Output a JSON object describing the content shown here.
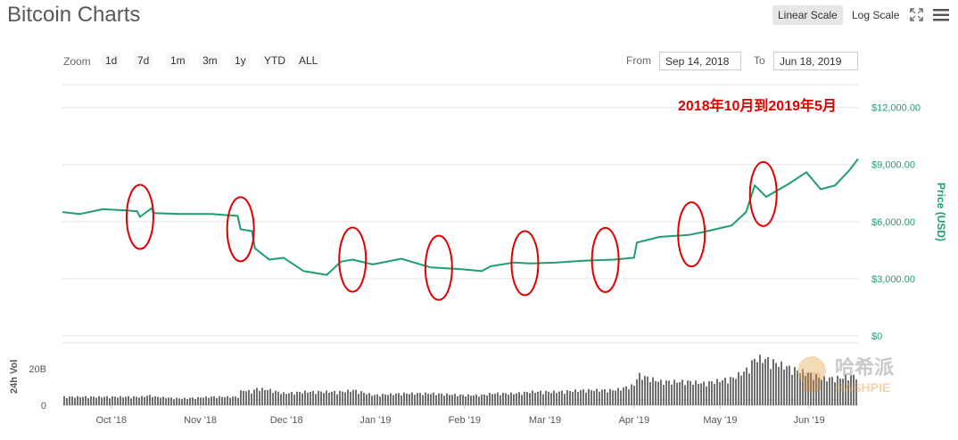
{
  "header": {
    "title": "Bitcoin Charts",
    "linear_scale_label": "Linear Scale",
    "log_scale_label": "Log Scale",
    "fullscreen_icon": "expand-icon",
    "menu_icon": "hamburger-menu-icon"
  },
  "zoom": {
    "label": "Zoom",
    "buttons": [
      "1d",
      "7d",
      "1m",
      "3m",
      "1y",
      "YTD",
      "ALL"
    ]
  },
  "range": {
    "from_label": "From",
    "from_value": "Sep 14, 2018",
    "to_label": "To",
    "to_value": "Jun 18, 2019"
  },
  "annotation": {
    "text": "2018年10月到2019年5月",
    "color": "#e00000"
  },
  "watermark": {
    "text": "哈希派",
    "subtext": "HASHPIE"
  },
  "colors": {
    "price_line": "#1f9e6b",
    "volume_bars": "#6f6f6f",
    "circle": "#e00000",
    "axis_label": "#1f9e6b"
  },
  "chart_data": {
    "type": "line",
    "x": [
      "2018-09-14",
      "2018-09-20",
      "2018-09-28",
      "2018-10-05",
      "2018-10-10",
      "2018-10-11",
      "2018-10-15",
      "2018-10-16",
      "2018-10-25",
      "2018-11-05",
      "2018-11-14",
      "2018-11-15",
      "2018-11-19",
      "2018-11-20",
      "2018-11-25",
      "2018-11-30",
      "2018-12-07",
      "2018-12-15",
      "2018-12-20",
      "2018-12-24",
      "2018-12-31",
      "2019-01-10",
      "2019-01-20",
      "2019-01-31",
      "2019-02-07",
      "2019-02-10",
      "2019-02-18",
      "2019-02-24",
      "2019-03-05",
      "2019-03-15",
      "2019-03-25",
      "2019-04-01",
      "2019-04-02",
      "2019-04-10",
      "2019-04-20",
      "2019-04-25",
      "2019-05-05",
      "2019-05-10",
      "2019-05-13",
      "2019-05-17",
      "2019-05-25",
      "2019-05-31",
      "2019-06-05",
      "2019-06-10",
      "2019-06-15",
      "2019-06-18"
    ],
    "y_price": [
      6500,
      6400,
      6650,
      6600,
      6550,
      6250,
      6700,
      6450,
      6400,
      6400,
      6300,
      5600,
      5500,
      4600,
      4000,
      4100,
      3400,
      3200,
      3900,
      4000,
      3750,
      4050,
      3600,
      3500,
      3400,
      3650,
      3850,
      3800,
      3850,
      3950,
      4000,
      4100,
      4900,
      5200,
      5300,
      5450,
      5800,
      6500,
      7900,
      7300,
      8000,
      8600,
      7700,
      7900,
      8700,
      9300
    ],
    "y_volume": [
      5,
      5,
      5,
      5,
      5,
      5,
      6,
      5,
      4,
      5,
      5,
      9,
      8,
      10,
      9,
      7,
      8,
      8,
      8,
      9,
      6,
      7,
      7,
      6,
      6,
      7,
      7,
      8,
      8,
      9,
      9,
      12,
      18,
      14,
      14,
      13,
      16,
      21,
      28,
      27,
      22,
      19,
      16,
      16,
      17,
      18
    ],
    "price_axis_label": "Price (USD)",
    "volume_axis_label": "24h Vol",
    "price_ticks": [
      "$0",
      "$3,000.00",
      "$6,000.00",
      "$9,000.00",
      "$12,000.00"
    ],
    "price_ylim": [
      0,
      13200
    ],
    "volume_ticks": [
      "0",
      "20B"
    ],
    "volume_ylim": [
      0,
      34
    ],
    "x_tick_labels": [
      "Oct '18",
      "Nov '18",
      "Dec '18",
      "Jan '19",
      "Feb '19",
      "Mar '19",
      "Apr '19",
      "May '19",
      "Jun '19"
    ],
    "x_tick_dates": [
      "2018-10-01",
      "2018-11-01",
      "2018-12-01",
      "2019-01-01",
      "2019-02-01",
      "2019-03-01",
      "2019-04-01",
      "2019-05-01",
      "2019-06-01"
    ],
    "highlight_dates": [
      "2018-10-11",
      "2018-11-15",
      "2018-12-24",
      "2019-01-23",
      "2019-02-22",
      "2019-03-22",
      "2019-04-21",
      "2019-05-16"
    ],
    "grid": true,
    "legend": "none"
  }
}
